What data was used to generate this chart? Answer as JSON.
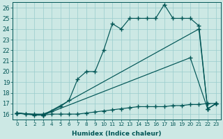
{
  "xlabel": "Humidex (Indice chaleur)",
  "bg_color": "#cce8e4",
  "grid_color": "#99cccc",
  "line_color": "#005555",
  "xlim": [
    -0.5,
    23.5
  ],
  "ylim": [
    15.5,
    26.5
  ],
  "xticks": [
    0,
    1,
    2,
    3,
    4,
    5,
    6,
    7,
    8,
    9,
    10,
    11,
    12,
    13,
    14,
    15,
    16,
    17,
    18,
    19,
    20,
    21,
    22,
    23
  ],
  "yticks": [
    16,
    17,
    18,
    19,
    20,
    21,
    22,
    23,
    24,
    25,
    26
  ],
  "series": [
    {
      "x": [
        0,
        1,
        2,
        3,
        4,
        5,
        6,
        7,
        8,
        9,
        10,
        11,
        12,
        13,
        14,
        15,
        16,
        17,
        18,
        19,
        20,
        21,
        22,
        23
      ],
      "y": [
        16.1,
        16.0,
        15.9,
        15.9,
        16.0,
        16.0,
        16.0,
        16.0,
        16.1,
        16.2,
        16.3,
        16.4,
        16.5,
        16.6,
        16.7,
        16.7,
        16.7,
        16.7,
        16.8,
        16.8,
        16.9,
        16.9,
        17.0,
        17.0
      ]
    },
    {
      "x": [
        0,
        3,
        20,
        22,
        23
      ],
      "y": [
        16.1,
        15.9,
        21.3,
        16.5,
        17.0
      ]
    },
    {
      "x": [
        0,
        3,
        21,
        22,
        23
      ],
      "y": [
        16.1,
        15.9,
        24.0,
        16.5,
        17.0
      ]
    },
    {
      "x": [
        0,
        1,
        2,
        3,
        4,
        5,
        6,
        7,
        8,
        9,
        10,
        11,
        12,
        13,
        14,
        15,
        16,
        17,
        18,
        19,
        20,
        21,
        22,
        23
      ],
      "y": [
        16.1,
        16.0,
        16.0,
        16.0,
        16.3,
        16.7,
        17.3,
        19.3,
        20.0,
        20.0,
        22.0,
        24.5,
        24.0,
        25.0,
        25.0,
        25.0,
        25.0,
        26.3,
        25.0,
        25.0,
        25.0,
        24.3,
        16.5,
        17.0
      ]
    }
  ]
}
